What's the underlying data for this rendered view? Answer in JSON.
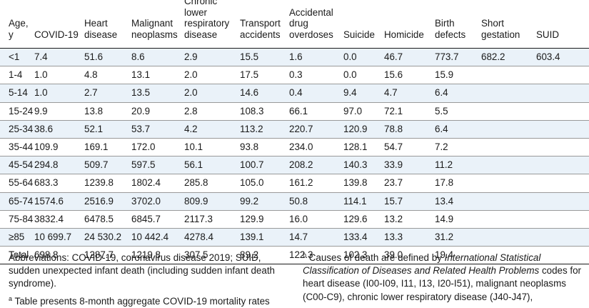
{
  "table": {
    "headers": [
      "Age, y",
      "COVID-19",
      "Heart disease",
      "Malignant neoplasms",
      "Chronic lower respiratory disease",
      "Transport accidents",
      "Accidental drug overdoses",
      "Suicide",
      "Homicide",
      "Birth defects",
      "Short gestation",
      "SUID"
    ],
    "rows": [
      [
        "<1",
        "7.4",
        "51.6",
        "8.6",
        "2.9",
        "15.5",
        "1.6",
        "0.0",
        "46.7",
        "773.7",
        "682.2",
        "603.4"
      ],
      [
        "1-4",
        "1.0",
        "4.8",
        "13.1",
        "2.0",
        "17.5",
        "0.3",
        "0.0",
        "15.6",
        "15.9",
        "",
        ""
      ],
      [
        "5-14",
        "1.0",
        "2.7",
        "13.5",
        "2.0",
        "14.6",
        "0.4",
        "9.4",
        "4.7",
        "6.4",
        "",
        ""
      ],
      [
        "15-24",
        "9.9",
        "13.8",
        "20.9",
        "2.8",
        "108.3",
        "66.1",
        "97.0",
        "72.1",
        "5.5",
        "",
        ""
      ],
      [
        "25-34",
        "38.6",
        "52.1",
        "53.7",
        "4.2",
        "113.2",
        "220.7",
        "120.9",
        "78.8",
        "6.4",
        "",
        ""
      ],
      [
        "35-44",
        "109.9",
        "169.1",
        "172.0",
        "10.1",
        "93.8",
        "234.0",
        "128.1",
        "54.7",
        "7.2",
        "",
        ""
      ],
      [
        "45-54",
        "294.8",
        "509.7",
        "597.5",
        "56.1",
        "100.7",
        "208.2",
        "140.3",
        "33.9",
        "11.2",
        "",
        ""
      ],
      [
        "55-64",
        "683.3",
        "1239.8",
        "1802.4",
        "285.8",
        "105.0",
        "161.2",
        "139.8",
        "23.7",
        "17.8",
        "",
        ""
      ],
      [
        "65-74",
        "1574.6",
        "2516.9",
        "3702.0",
        "809.9",
        "99.2",
        "50.8",
        "114.1",
        "15.7",
        "13.4",
        "",
        ""
      ],
      [
        "75-84",
        "3832.4",
        "6478.5",
        "6845.7",
        "2117.3",
        "129.9",
        "16.0",
        "129.6",
        "13.2",
        "14.9",
        "",
        ""
      ],
      [
        "≥85",
        "10 699.7",
        "24 530.2",
        "10 442.4",
        "4278.4",
        "139.1",
        "14.7",
        "133.4",
        "13.3",
        "31.2",
        "",
        ""
      ],
      [
        "Total",
        "698.8",
        "1287.7",
        "1219.8",
        "307.5",
        "89.2",
        "122.3",
        "102.3",
        "39.0",
        "19.4",
        "",
        ""
      ]
    ]
  },
  "notes": {
    "abbreviations": "Abbreviations: COVID-19, coronavirus disease 2019; SUID, sudden unexpected infant death (including sudden infant death syndrome).",
    "note_a_marker": "a",
    "note_a_text": "Table presents 8-month aggregate COVID-19 mortality rates",
    "note_b_marker": "b",
    "note_b_text_pre": "Causes of death are defined by ",
    "note_b_text_italic": "International Statistical Classification of Diseases and Related Health Problems",
    "note_b_text_post": " codes for heart disease (I00-I09, I11, I13, I20-I51), malignant neoplasms (C00-C9), chronic lower respiratory disease (J40-J47),"
  }
}
